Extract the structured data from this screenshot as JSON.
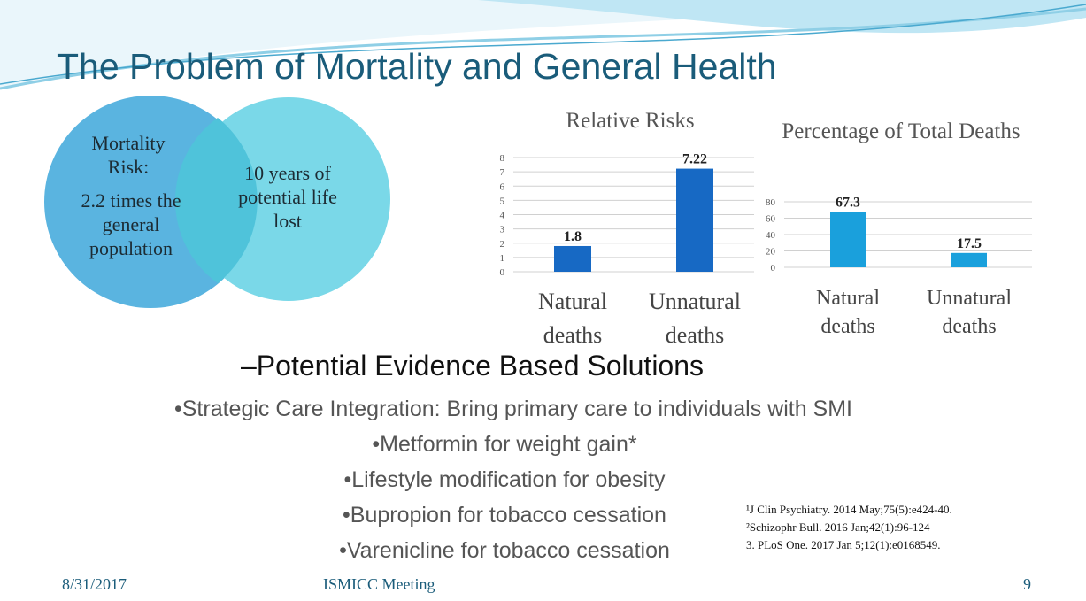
{
  "title": "The Problem of Mortality and General Health",
  "venn": {
    "left": {
      "heading": "Mortality Risk:",
      "text": "2.2 times the general population"
    },
    "right": {
      "text": "10 years of potential life lost"
    }
  },
  "chart_data": [
    {
      "type": "bar",
      "title": "Relative Risks",
      "categories": [
        "Natural deaths",
        "Unnatural deaths"
      ],
      "values": [
        1.8,
        7.22
      ],
      "color": "#1769c4",
      "ylim": [
        0,
        8
      ],
      "yticks": [
        0,
        1,
        2,
        3,
        4,
        5,
        6,
        7,
        8
      ],
      "grid": true
    },
    {
      "type": "bar",
      "title": "Percentage of Total Deaths",
      "categories": [
        "Natural deaths",
        "Unnatural deaths"
      ],
      "values": [
        67.3,
        17.5
      ],
      "color": "#1aa0dc",
      "ylim": [
        0,
        80
      ],
      "yticks": [
        0,
        20,
        40,
        60,
        80
      ],
      "grid": true
    }
  ],
  "subheading": "–Potential Evidence Based Solutions",
  "bullets": [
    "•Strategic Care Integration: Bring primary care to individuals with SMI",
    "•Metformin for weight gain*",
    "•Lifestyle modification for obesity",
    "•Bupropion for tobacco cessation",
    "•Varenicline for tobacco cessation"
  ],
  "references": [
    "¹J Clin Psychiatry. 2014 May;75(5):e424-40.",
    "²Schizophr Bull. 2016 Jan;42(1):96-124",
    "3. PLoS One. 2017 Jan 5;12(1):e0168549."
  ],
  "footer": {
    "date": "8/31/2017",
    "event": "ISMICC Meeting",
    "page": "9"
  }
}
